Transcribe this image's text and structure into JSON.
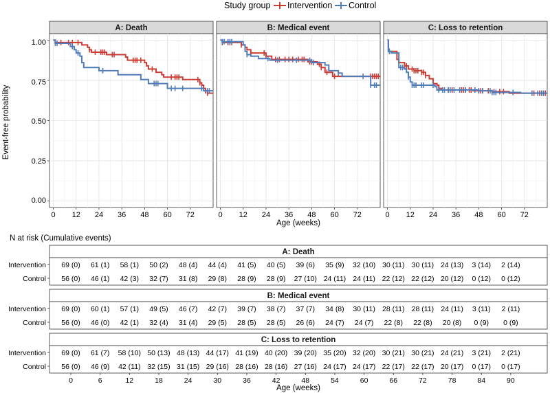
{
  "legend": {
    "title": "Study group",
    "items": [
      {
        "name": "Intervention",
        "color": "#cc3b33"
      },
      {
        "name": "Control",
        "color": "#4f7cb9"
      }
    ]
  },
  "chart_data": {
    "type": "line",
    "subtype": "kaplan-meier step curves with censor marks",
    "ylabel": "Event-free probability",
    "xlabel": "Age (weeks)",
    "xlim": [
      -2,
      84
    ],
    "ylim": [
      -0.04,
      1.04
    ],
    "xticks": [
      0,
      12,
      24,
      36,
      48,
      60,
      72
    ],
    "yticks": [
      0.0,
      0.25,
      0.5,
      0.75,
      1.0
    ],
    "ytick_labels": [
      "0.00",
      "0.25",
      "0.50",
      "0.75",
      "1.00"
    ],
    "grid": true,
    "panels": [
      {
        "title": "A: Death",
        "series": [
          {
            "name": "Intervention",
            "color": "#cc3b33",
            "steps": [
              [
                0,
                1.0
              ],
              [
                1,
                0.985
              ],
              [
                12,
                0.985
              ],
              [
                15,
                0.97
              ],
              [
                18,
                0.955
              ],
              [
                19,
                0.94
              ],
              [
                20,
                0.925
              ],
              [
                28,
                0.91
              ],
              [
                38,
                0.895
              ],
              [
                39,
                0.875
              ],
              [
                48,
                0.86
              ],
              [
                49,
                0.84
              ],
              [
                50,
                0.82
              ],
              [
                54,
                0.8
              ],
              [
                57,
                0.785
              ],
              [
                58,
                0.77
              ],
              [
                68,
                0.755
              ],
              [
                77,
                0.735
              ],
              [
                78,
                0.72
              ],
              [
                79,
                0.7
              ],
              [
                80,
                0.685
              ],
              [
                81,
                0.67
              ],
              [
                84,
                0.67
              ]
            ],
            "censor": [
              1,
              4,
              8,
              10,
              13,
              19,
              22,
              25,
              26,
              27,
              31,
              32,
              42,
              43,
              44,
              46,
              52,
              62,
              64,
              65,
              66,
              76,
              77,
              80,
              81
            ]
          },
          {
            "name": "Control",
            "color": "#4f7cb9",
            "steps": [
              [
                0,
                1.0
              ],
              [
                1,
                0.98
              ],
              [
                9,
                0.96
              ],
              [
                11,
                0.94
              ],
              [
                12,
                0.92
              ],
              [
                14,
                0.9
              ],
              [
                15,
                0.86
              ],
              [
                16,
                0.83
              ],
              [
                24,
                0.81
              ],
              [
                34,
                0.785
              ],
              [
                46,
                0.755
              ],
              [
                50,
                0.73
              ],
              [
                60,
                0.7
              ],
              [
                79,
                0.685
              ],
              [
                84,
                0.685
              ]
            ],
            "censor": [
              1,
              2,
              10,
              13,
              26,
              53,
              54,
              55,
              62,
              64,
              68,
              78,
              81,
              82
            ]
          }
        ]
      },
      {
        "title": "B: Medical event",
        "series": [
          {
            "name": "Intervention",
            "color": "#cc3b33",
            "steps": [
              [
                0,
                1.0
              ],
              [
                1,
                0.985
              ],
              [
                11,
                0.97
              ],
              [
                13,
                0.955
              ],
              [
                14,
                0.94
              ],
              [
                16,
                0.92
              ],
              [
                24,
                0.9
              ],
              [
                27,
                0.88
              ],
              [
                46,
                0.865
              ],
              [
                51,
                0.85
              ],
              [
                53,
                0.83
              ],
              [
                55,
                0.8
              ],
              [
                59,
                0.775
              ],
              [
                77,
                0.775
              ],
              [
                84,
                0.775
              ]
            ],
            "censor": [
              1,
              4,
              5,
              6,
              11,
              16,
              23,
              24,
              29,
              31,
              34,
              36,
              38,
              41,
              43,
              44,
              47,
              48,
              52,
              53,
              56,
              60,
              79,
              80,
              81,
              82,
              83
            ]
          },
          {
            "name": "Control",
            "color": "#4f7cb9",
            "steps": [
              [
                0,
                1.0
              ],
              [
                1,
                0.99
              ],
              [
                12,
                0.97
              ],
              [
                13,
                0.93
              ],
              [
                14,
                0.91
              ],
              [
                16,
                0.9
              ],
              [
                20,
                0.885
              ],
              [
                26,
                0.875
              ],
              [
                48,
                0.86
              ],
              [
                55,
                0.845
              ],
              [
                57,
                0.81
              ],
              [
                62,
                0.795
              ],
              [
                64,
                0.775
              ],
              [
                79,
                0.72
              ],
              [
                84,
                0.72
              ]
            ],
            "censor": [
              1,
              2,
              4,
              5,
              6,
              14,
              25,
              30,
              40,
              47,
              49,
              62,
              75,
              79,
              81,
              82
            ]
          }
        ]
      },
      {
        "title": "C: Loss to retention",
        "series": [
          {
            "name": "Intervention",
            "color": "#cc3b33",
            "steps": [
              [
                0,
                1.0
              ],
              [
                0.5,
                0.93
              ],
              [
                3,
                0.93
              ],
              [
                5,
                0.88
              ],
              [
                6,
                0.86
              ],
              [
                9,
                0.84
              ],
              [
                11,
                0.82
              ],
              [
                14,
                0.81
              ],
              [
                18,
                0.8
              ],
              [
                20,
                0.78
              ],
              [
                22,
                0.76
              ],
              [
                24,
                0.73
              ],
              [
                26,
                0.72
              ],
              [
                27,
                0.7
              ],
              [
                29,
                0.69
              ],
              [
                45,
                0.685
              ],
              [
                55,
                0.68
              ],
              [
                64,
                0.67
              ],
              [
                84,
                0.67
              ]
            ],
            "censor": [
              1,
              9,
              10,
              13,
              14,
              15,
              16,
              18,
              19,
              20,
              27,
              32,
              34,
              38,
              39,
              40,
              41,
              43,
              44,
              48,
              49,
              50,
              53,
              56,
              59,
              61,
              77,
              80,
              81,
              82,
              83
            ]
          },
          {
            "name": "Control",
            "color": "#4f7cb9",
            "steps": [
              [
                0,
                1.0
              ],
              [
                0.5,
                0.93
              ],
              [
                2,
                0.92
              ],
              [
                6,
                0.83
              ],
              [
                9,
                0.82
              ],
              [
                10,
                0.8
              ],
              [
                11,
                0.77
              ],
              [
                12,
                0.74
              ],
              [
                13,
                0.72
              ],
              [
                25,
                0.71
              ],
              [
                26,
                0.69
              ],
              [
                48,
                0.685
              ],
              [
                55,
                0.675
              ],
              [
                70,
                0.67
              ],
              [
                84,
                0.67
              ]
            ],
            "censor": [
              1,
              7,
              8,
              11,
              13,
              14,
              15,
              18,
              19,
              24,
              27,
              29,
              30,
              32,
              33,
              35,
              38,
              41,
              46,
              48,
              50,
              54,
              55,
              56,
              57,
              66,
              76,
              79,
              81,
              82
            ]
          }
        ]
      }
    ]
  },
  "risk_table": {
    "title": "N at risk (Cumulative events)",
    "xlabel": "Age (weeks)",
    "times": [
      0,
      6,
      12,
      18,
      24,
      30,
      36,
      42,
      48,
      54,
      60,
      66,
      72,
      78,
      84,
      90
    ],
    "tick_labels": [
      "0",
      "6",
      "12",
      "18",
      "24",
      "30",
      "36",
      "42",
      "48",
      "54",
      "60",
      "66",
      "72",
      "78",
      "84",
      "90"
    ],
    "panels": [
      {
        "title": "A: Death",
        "rows": [
          {
            "label": "Intervention",
            "cells": [
              "69 (0)",
              "61 (1)",
              "58 (1)",
              "50 (2)",
              "48 (4)",
              "44 (4)",
              "41 (5)",
              "40 (5)",
              "39 (6)",
              "35 (9)",
              "32 (10)",
              "30 (11)",
              "30 (11)",
              "24 (13)",
              "3 (14)",
              "2 (14)"
            ]
          },
          {
            "label": "Control",
            "cells": [
              "56 (0)",
              "46 (1)",
              "42 (3)",
              "32 (7)",
              "31 (8)",
              "29 (8)",
              "28 (9)",
              "28 (9)",
              "27 (10)",
              "24 (11)",
              "24 (11)",
              "22 (12)",
              "22 (12)",
              "20 (12)",
              "0 (12)",
              "0 (12)"
            ]
          }
        ]
      },
      {
        "title": "B: Medical event",
        "rows": [
          {
            "label": "Intervention",
            "cells": [
              "69 (0)",
              "60 (1)",
              "57 (1)",
              "49 (5)",
              "46 (7)",
              "42 (7)",
              "39 (7)",
              "38 (7)",
              "37 (7)",
              "34 (8)",
              "30 (11)",
              "28 (11)",
              "28 (11)",
              "24 (11)",
              "3 (11)",
              "2 (11)"
            ]
          },
          {
            "label": "Control",
            "cells": [
              "56 (0)",
              "46 (0)",
              "42 (1)",
              "32 (4)",
              "31 (4)",
              "29 (5)",
              "28 (5)",
              "28 (5)",
              "26 (6)",
              "24 (7)",
              "24 (7)",
              "22 (8)",
              "22 (8)",
              "20 (8)",
              "0 (9)",
              "0 (9)"
            ]
          }
        ]
      },
      {
        "title": "C: Loss to retention",
        "rows": [
          {
            "label": "Intervention",
            "cells": [
              "69 (0)",
              "61 (7)",
              "58 (10)",
              "50 (13)",
              "48 (13)",
              "44 (17)",
              "41 (19)",
              "40 (20)",
              "39 (20)",
              "35 (20)",
              "32 (20)",
              "30 (21)",
              "30 (21)",
              "24 (21)",
              "3 (21)",
              "2 (21)"
            ]
          },
          {
            "label": "Control",
            "cells": [
              "56 (0)",
              "46 (9)",
              "42 (11)",
              "32 (15)",
              "31 (15)",
              "29 (16)",
              "28 (16)",
              "28 (16)",
              "27 (16)",
              "24 (17)",
              "24 (17)",
              "22 (17)",
              "22 (17)",
              "20 (17)",
              "0 (17)",
              "0 (17)"
            ]
          }
        ]
      }
    ]
  }
}
